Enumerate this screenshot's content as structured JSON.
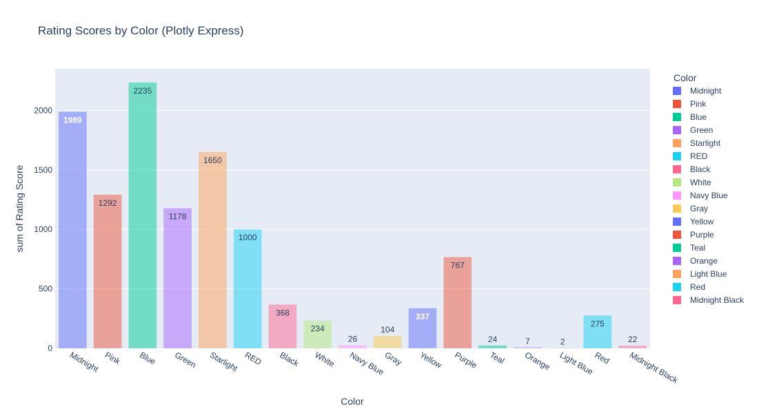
{
  "chart_data": {
    "type": "bar",
    "title": "Rating Scores by Color (Plotly Express)",
    "xlabel": "Color",
    "ylabel": "sum of Rating Score",
    "ylim": [
      0,
      2350
    ],
    "yticks": [
      0,
      500,
      1000,
      1500,
      2000
    ],
    "grid": true,
    "legend_title": "Color",
    "legend_position": "right",
    "categories": [
      "Midnight",
      "Pink",
      "Blue",
      "Green",
      "Starlight",
      "RED",
      "Black",
      "White",
      "Navy Blue",
      "Gray",
      "Yellow",
      "Purple",
      "Teal",
      "Orange",
      "Light Blue",
      "Red",
      "Midnight Black"
    ],
    "values": [
      1989,
      1292,
      2235,
      1178,
      1650,
      1000,
      368,
      234,
      26,
      104,
      337,
      767,
      24,
      7,
      2,
      275,
      22
    ],
    "colors": [
      "#636efa",
      "#EF553B",
      "#00cc96",
      "#ab63fa",
      "#FFA15A",
      "#19d3f3",
      "#FF6692",
      "#B6E880",
      "#FF97FF",
      "#FECB52",
      "#636efa",
      "#EF553B",
      "#00cc96",
      "#ab63fa",
      "#FFA15A",
      "#19d3f3",
      "#FF6692"
    ],
    "label_positions": [
      "inside",
      "inside",
      "inside",
      "inside",
      "inside",
      "inside",
      "inside",
      "inside",
      "outside",
      "outside",
      "inside",
      "inside",
      "outside",
      "outside",
      "outside",
      "inside",
      "outside"
    ],
    "label_colors": [
      "#ffffff",
      "#2a3f5f",
      "#2a3f5f",
      "#2a3f5f",
      "#2a3f5f",
      "#2a3f5f",
      "#2a3f5f",
      "#2a3f5f",
      "#2a3f5f",
      "#2a3f5f",
      "#ffffff",
      "#2a3f5f",
      "#2a3f5f",
      "#2a3f5f",
      "#2a3f5f",
      "#2a3f5f",
      "#2a3f5f"
    ]
  }
}
